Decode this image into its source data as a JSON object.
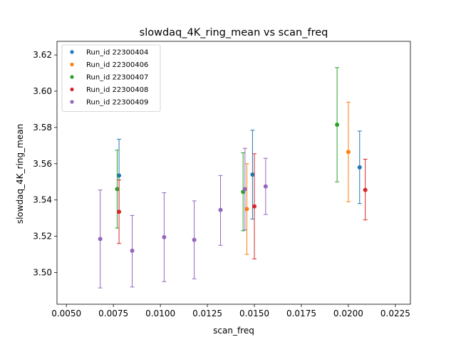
{
  "chart_data": {
    "type": "scatter",
    "title": "slowdaq_4K_ring_mean vs scan_freq",
    "xlabel": "scan_freq",
    "ylabel": "slowdaq_4K_ring_mean",
    "xlim": [
      0.0045,
      0.0233
    ],
    "ylim": [
      3.4825,
      3.6275
    ],
    "xticks": [
      0.005,
      0.0075,
      0.01,
      0.0125,
      0.015,
      0.0175,
      0.02,
      0.0225
    ],
    "xtick_labels": [
      "0.0050",
      "0.0075",
      "0.0100",
      "0.0125",
      "0.0150",
      "0.0175",
      "0.0200",
      "0.0225"
    ],
    "yticks": [
      3.5,
      3.52,
      3.54,
      3.56,
      3.58,
      3.6,
      3.62
    ],
    "ytick_labels": [
      "3.50",
      "3.52",
      "3.54",
      "3.56",
      "3.58",
      "3.60",
      "3.62"
    ],
    "grid": false,
    "legend_position": "top-left",
    "series": [
      {
        "name": "Run_id 22300404",
        "color": "#1f77b4",
        "points": [
          {
            "x": 0.0078,
            "y": 3.5535,
            "yerr_low": 3.5335,
            "yerr_high": 3.5735
          },
          {
            "x": 0.0149,
            "y": 3.554,
            "yerr_low": 3.5295,
            "yerr_high": 3.5785
          },
          {
            "x": 0.0206,
            "y": 3.558,
            "yerr_low": 3.538,
            "yerr_high": 3.578
          }
        ]
      },
      {
        "name": "Run_id 22300406",
        "color": "#ff7f0e",
        "points": [
          {
            "x": 0.0146,
            "y": 3.535,
            "yerr_low": 3.51,
            "yerr_high": 3.56
          },
          {
            "x": 0.02,
            "y": 3.5665,
            "yerr_low": 3.539,
            "yerr_high": 3.594
          }
        ]
      },
      {
        "name": "Run_id 22300407",
        "color": "#2ca02c",
        "points": [
          {
            "x": 0.0077,
            "y": 3.546,
            "yerr_low": 3.5245,
            "yerr_high": 3.5675
          },
          {
            "x": 0.0144,
            "y": 3.5445,
            "yerr_low": 3.523,
            "yerr_high": 3.566
          },
          {
            "x": 0.0194,
            "y": 3.5815,
            "yerr_low": 3.55,
            "yerr_high": 3.613
          }
        ]
      },
      {
        "name": "Run_id 22300408",
        "color": "#d62728",
        "points": [
          {
            "x": 0.0078,
            "y": 3.5335,
            "yerr_low": 3.516,
            "yerr_high": 3.551
          },
          {
            "x": 0.015,
            "y": 3.5365,
            "yerr_low": 3.5075,
            "yerr_high": 3.5655
          },
          {
            "x": 0.0209,
            "y": 3.5455,
            "yerr_low": 3.529,
            "yerr_high": 3.5625
          }
        ]
      },
      {
        "name": "Run_id 22300409",
        "color": "#9467bd",
        "points": [
          {
            "x": 0.0068,
            "y": 3.5185,
            "yerr_low": 3.4915,
            "yerr_high": 3.5455
          },
          {
            "x": 0.0085,
            "y": 3.512,
            "yerr_low": 3.492,
            "yerr_high": 3.5315
          },
          {
            "x": 0.0102,
            "y": 3.5195,
            "yerr_low": 3.495,
            "yerr_high": 3.544
          },
          {
            "x": 0.0118,
            "y": 3.518,
            "yerr_low": 3.4965,
            "yerr_high": 3.5395
          },
          {
            "x": 0.0132,
            "y": 3.5345,
            "yerr_low": 3.515,
            "yerr_high": 3.5535
          },
          {
            "x": 0.0145,
            "y": 3.546,
            "yerr_low": 3.5235,
            "yerr_high": 3.5685
          },
          {
            "x": 0.0156,
            "y": 3.5475,
            "yerr_low": 3.532,
            "yerr_high": 3.563
          }
        ]
      }
    ]
  }
}
